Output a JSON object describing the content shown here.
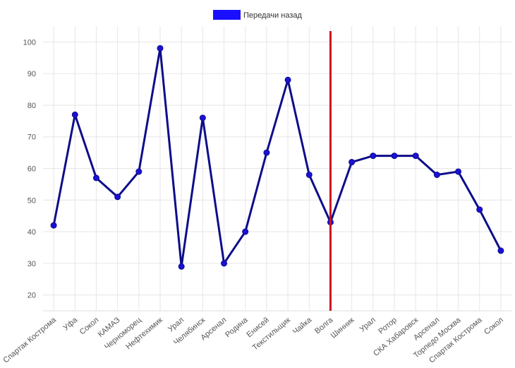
{
  "chart_data": {
    "type": "line",
    "categories": [
      "Спартак Кострома",
      "Уфа",
      "Сокол",
      "КАМАЗ",
      "Черноморец",
      "Нефтехимик",
      "Урал",
      "Челябинск",
      "Арсенал",
      "Родина",
      "Енисей",
      "Текстильщик",
      "Чайка",
      "Волга",
      "Шинник",
      "Урал",
      "Ротор",
      "СКА Хабаровск",
      "Арсенал",
      "Торпедо Москва",
      "Спартак Кострома",
      "Сокол"
    ],
    "series": [
      {
        "name": "Передачи назад",
        "values": [
          42,
          77,
          57,
          51,
          59,
          98,
          29,
          76,
          30,
          40,
          65,
          88,
          58,
          43,
          62,
          64,
          64,
          64,
          58,
          59,
          47,
          34
        ]
      }
    ],
    "ylim": [
      15,
      105
    ],
    "yticks": [
      20,
      30,
      40,
      50,
      60,
      70,
      80,
      90,
      100
    ],
    "grid": true,
    "legend_position": "top-center",
    "marker_line_category_index": 13,
    "colors": {
      "line": "#0d0d8a",
      "marker": "#1a10d8",
      "legend_swatch": "#1a10ff",
      "vertical_marker": "#cc1122",
      "grid": "#e6e6e6"
    }
  }
}
